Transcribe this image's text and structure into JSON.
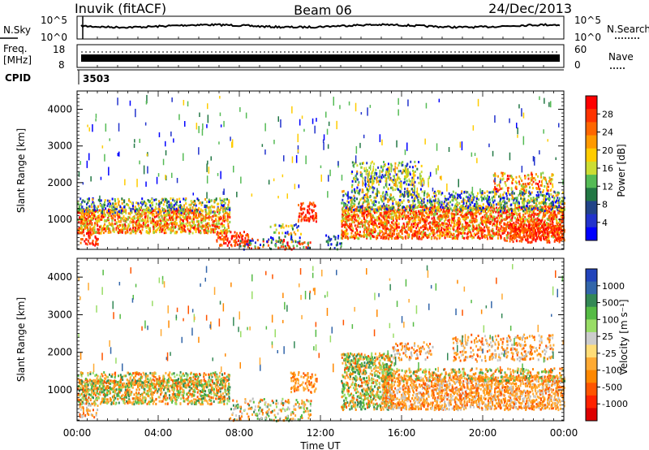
{
  "header": {
    "station": "Inuvik (fitACF)",
    "beam": "Beam 06",
    "date": "24/Dec/2013"
  },
  "strips": {
    "nsky": {
      "label": "N.Sky",
      "ticks": [
        "10^5",
        "10^0"
      ],
      "right_label": "N.Search",
      "right_ticks": [
        "10^5",
        "10^0"
      ]
    },
    "freq": {
      "label_line1": "Freq.",
      "label_line2": "[MHz]",
      "ticks": [
        "18",
        "8"
      ],
      "right_label": "Nave",
      "right_ticks": [
        "60",
        "0"
      ]
    },
    "cpid": {
      "label": "CPID",
      "value": "3503"
    }
  },
  "chart_data": [
    {
      "type": "heatmap",
      "name": "power",
      "ylabel": "Slant Range [km]",
      "y_ticks": [
        1000,
        2000,
        3000,
        4000
      ],
      "ylim": [
        180,
        4500
      ],
      "xlim_hours": [
        0,
        24
      ],
      "colorbar": {
        "title": "Power [dB]",
        "labels": [
          "28",
          "24",
          "20",
          "16",
          "12",
          "8",
          "4"
        ],
        "colors": [
          "#ff0000",
          "#ff3300",
          "#ff6600",
          "#ff9900",
          "#ffcc00",
          "#ccdd33",
          "#55bb55",
          "#227744",
          "#224488",
          "#2233cc",
          "#0000ff"
        ]
      }
    },
    {
      "type": "heatmap",
      "name": "velocity",
      "ylabel": "Slant Range [km]",
      "y_ticks": [
        1000,
        2000,
        3000,
        4000
      ],
      "ylim": [
        180,
        4500
      ],
      "xlim_hours": [
        0,
        24
      ],
      "xlabel": "Time UT",
      "x_ticks": [
        "00:00",
        "04:00",
        "08:00",
        "12:00",
        "16:00",
        "20:00",
        "00:00"
      ],
      "colorbar": {
        "title": "Velocity [m s⁻¹]",
        "labels": [
          "1000",
          "500",
          "100",
          "25",
          "-25",
          "-100",
          "-500",
          "-1000"
        ],
        "colors": [
          "#2244bb",
          "#3366aa",
          "#338855",
          "#55bb44",
          "#99dd66",
          "#cccccc",
          "#ffdd77",
          "#ffaa33",
          "#ff8800",
          "#ff5500",
          "#ff2200",
          "#dd0000"
        ]
      }
    }
  ]
}
